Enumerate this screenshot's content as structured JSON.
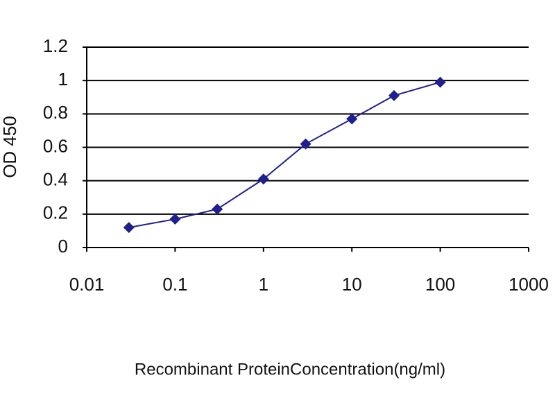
{
  "chart_data": {
    "type": "line",
    "xscale": "log",
    "grid": true,
    "x": [
      0.03,
      0.1,
      0.3,
      1,
      3,
      10,
      30,
      100
    ],
    "series": [
      {
        "color": "#1f1f8f",
        "values": [
          0.12,
          0.17,
          0.23,
          0.41,
          0.62,
          0.77,
          0.91,
          0.99
        ]
      }
    ],
    "xlim": [
      0.01,
      1000
    ],
    "xticks": [
      0.01,
      0.1,
      1,
      10,
      100,
      1000
    ],
    "ylim": [
      0,
      1.2
    ],
    "yticks": [
      0,
      0.2,
      0.4,
      0.6,
      0.8,
      1,
      1.2
    ],
    "xlabel": "Recombinant ProteinConcentration(ng/ml)",
    "ylabel": "OD 450"
  }
}
